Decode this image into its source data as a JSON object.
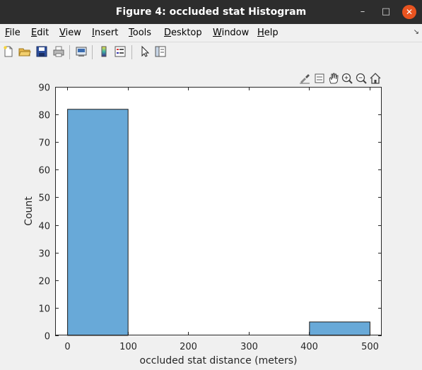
{
  "window": {
    "title": "Figure 4: occluded stat Histogram"
  },
  "titlebar_buttons": {
    "minimize": "–",
    "maximize": "□",
    "close": "✕"
  },
  "menu": {
    "items": [
      {
        "accel": "F",
        "rest": "ile"
      },
      {
        "accel": "E",
        "rest": "dit"
      },
      {
        "accel": "V",
        "rest": "iew"
      },
      {
        "accel": "I",
        "rest": "nsert"
      },
      {
        "accel": "T",
        "rest": "ools"
      },
      {
        "accel": "D",
        "rest": "esktop"
      },
      {
        "accel": "W",
        "rest": "indow"
      },
      {
        "accel": "H",
        "rest": "elp"
      }
    ],
    "overflow_arrow": "↘"
  },
  "toolbar": {
    "icons": [
      "new-figure-icon",
      "open-file-icon",
      "save-icon",
      "print-icon",
      "link-plot-icon",
      "colorbar-icon",
      "legend-icon",
      "select-arrow-icon",
      "property-inspector-icon"
    ]
  },
  "axes_toolbar": {
    "icons": [
      "brush-icon",
      "data-tips-icon",
      "pan-hand-icon",
      "zoom-in-icon",
      "zoom-out-icon",
      "home-icon"
    ]
  },
  "colors": {
    "bar_fill": "#68a9d8",
    "bar_edge": "#1a1a1a",
    "axes_bg": "#ffffff",
    "figure_bg": "#f0f0f0"
  },
  "chart_data": {
    "type": "bar",
    "bin_edges": [
      0,
      100,
      200,
      300,
      400,
      500
    ],
    "values": [
      82,
      0,
      0,
      0,
      5
    ],
    "title": "",
    "xlabel": "occluded stat distance (meters)",
    "ylabel": "Count",
    "xlim": [
      -20,
      520
    ],
    "ylim": [
      0,
      90
    ],
    "xticks": [
      "0",
      "100",
      "200",
      "300",
      "400",
      "500"
    ],
    "yticks": [
      "0",
      "10",
      "20",
      "30",
      "40",
      "50",
      "60",
      "70",
      "80",
      "90"
    ],
    "grid": false,
    "legend": "none"
  }
}
